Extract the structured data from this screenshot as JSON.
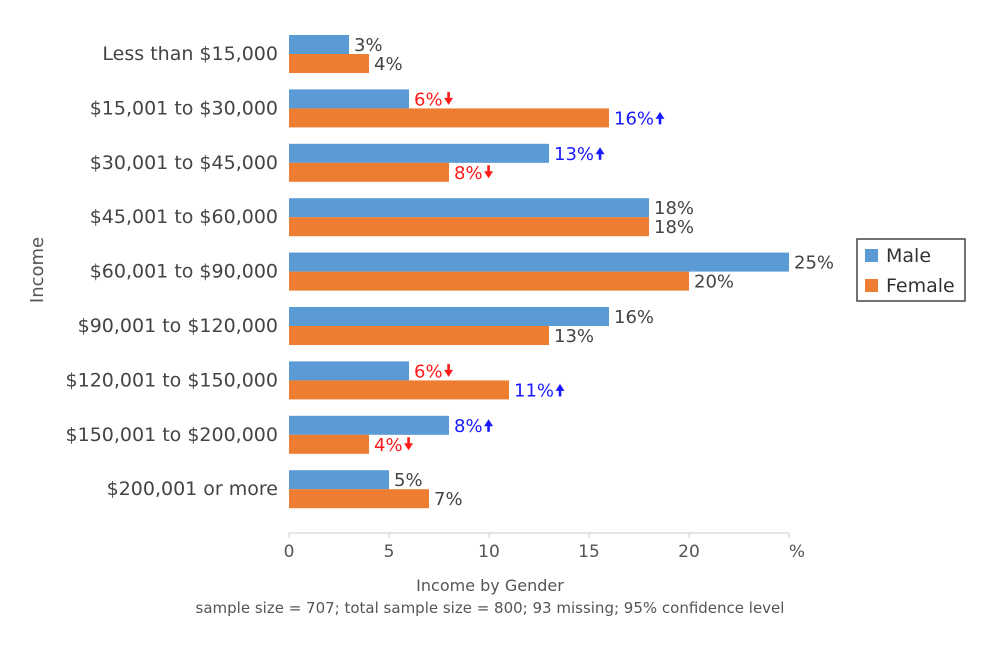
{
  "chart_data": {
    "type": "bar",
    "orientation": "horizontal",
    "title": "Income by Gender",
    "subtitle": "sample size = 707; total sample size = 800; 93 missing; 95% confidence level",
    "ylabel": "Income",
    "xlabel": "",
    "unit_label": "%",
    "xlim": [
      0,
      25
    ],
    "xticks": [
      0,
      5,
      10,
      15,
      20
    ],
    "grid": false,
    "legend_position": "right",
    "categories": [
      "Less than $15,000",
      "$15,001 to $30,000",
      "$30,001 to $45,000",
      "$45,001 to $60,000",
      "$60,001 to $90,000",
      "$90,001 to $120,000",
      "$120,001 to $150,000",
      "$150,001 to $200,000",
      "$200,001 or more"
    ],
    "series": [
      {
        "name": "Male",
        "color": "#5b9bd5",
        "values": [
          3,
          6,
          13,
          18,
          25,
          16,
          6,
          8,
          5
        ],
        "labels": [
          "3%",
          "6%",
          "13%",
          "18%",
          "25%",
          "16%",
          "6%",
          "8%",
          "5%"
        ],
        "significance": [
          "",
          "down",
          "up",
          "",
          "",
          "",
          "down",
          "up",
          ""
        ]
      },
      {
        "name": "Female",
        "color": "#ed7d31",
        "values": [
          4,
          16,
          8,
          18,
          20,
          13,
          11,
          4,
          7
        ],
        "labels": [
          "4%",
          "16%",
          "8%",
          "18%",
          "20%",
          "13%",
          "11%",
          "4%",
          "7%"
        ],
        "significance": [
          "",
          "up",
          "down",
          "",
          "",
          "",
          "up",
          "down",
          ""
        ]
      }
    ],
    "colors": {
      "up": "#1a1aff",
      "down": "#ff1a1a",
      "neutral": "#444444",
      "axis": "#cccccc"
    }
  }
}
